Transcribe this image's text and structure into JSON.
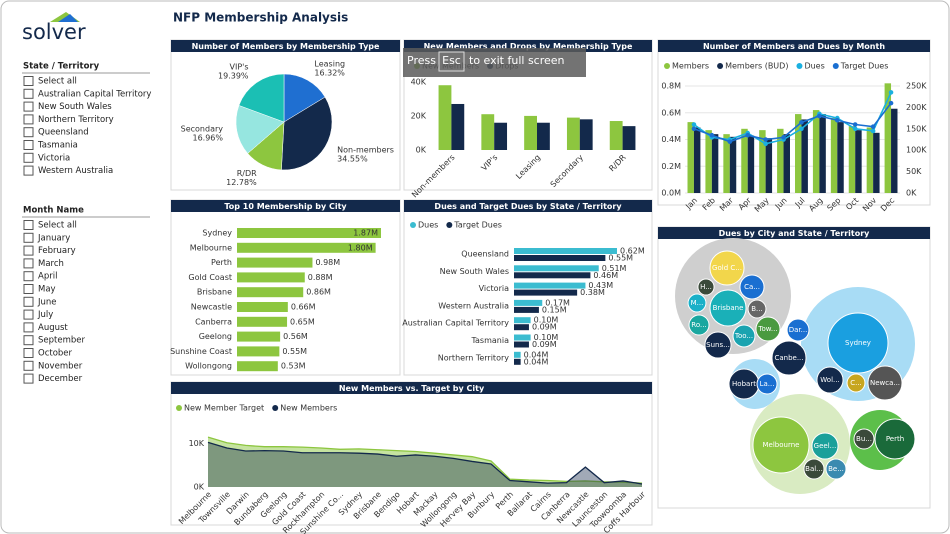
{
  "header": {
    "title": "NFP Membership Analysis",
    "logo": "solver"
  },
  "overlay": {
    "press": "Press",
    "key": "Esc",
    "rest": "to exit full screen"
  },
  "filters": [
    {
      "title": "State / Territory",
      "items": [
        "Select all",
        "Australian Capital Territory",
        "New South Wales",
        "Northern Territory",
        "Queensland",
        "Tasmania",
        "Victoria",
        "Western Australia"
      ]
    },
    {
      "title": "Month Name",
      "items": [
        "Select all",
        "January",
        "February",
        "March",
        "April",
        "May",
        "June",
        "July",
        "August",
        "September",
        "October",
        "November",
        "December"
      ]
    }
  ],
  "chart_data": [
    {
      "type": "pie",
      "title": "Number of Members by Membership Type",
      "categories": [
        "Leasing",
        "Non-members",
        "R/DR",
        "Secondary",
        "VIP's"
      ],
      "values": [
        16.32,
        34.55,
        12.78,
        16.96,
        19.39
      ],
      "value_labels": [
        "16.32%",
        "34.55%",
        "12.78%",
        "16.96%",
        "19.39%"
      ],
      "colors": [
        "#1f6fd1",
        "#13294b",
        "#8dc63f",
        "#96e6e0",
        "#1bbfb4"
      ]
    },
    {
      "type": "bar",
      "title": "New Members and Drops by Membership Type",
      "categories": [
        "Non-members",
        "VIP's",
        "Leasing",
        "Secondary",
        "R/DR"
      ],
      "series": [
        {
          "name": "New Members",
          "color": "#8dc63f",
          "values": [
            38,
            21,
            20,
            19,
            17
          ]
        },
        {
          "name": "Drops",
          "color": "#13294b",
          "values": [
            27,
            16,
            16,
            18,
            14
          ]
        }
      ],
      "ylim": [
        0,
        44
      ],
      "yticks": [
        {
          "value": 0,
          "label": "0K"
        },
        {
          "value": 20,
          "label": "20K"
        },
        {
          "value": 40,
          "label": "40K"
        }
      ]
    },
    {
      "type": "combo",
      "title": "Number of Members and Dues by Month",
      "categories": [
        "Jan",
        "Feb",
        "Mar",
        "Apr",
        "May",
        "Jun",
        "Jul",
        "Aug",
        "Sep",
        "Oct",
        "Nov",
        "Dec"
      ],
      "series": [
        {
          "name": "Members",
          "color": "#8dc63f",
          "values": [
            0.53,
            0.47,
            0.44,
            0.48,
            0.47,
            0.48,
            0.59,
            0.62,
            0.56,
            0.5,
            0.49,
            0.82
          ]
        },
        {
          "name": "Members (BUD)",
          "color": "#13294b",
          "values": [
            0.49,
            0.44,
            0.42,
            0.43,
            0.41,
            0.44,
            0.55,
            0.59,
            0.53,
            0.47,
            0.45,
            0.63
          ]
        },
        {
          "name": "Dues",
          "color": "#1ab0e0",
          "axis": "y2",
          "values": [
            160,
            130,
            125,
            140,
            115,
            125,
            150,
            185,
            175,
            150,
            145,
            235
          ]
        },
        {
          "name": "Target Dues",
          "color": "#1a6fd1",
          "axis": "y2",
          "values": [
            150,
            135,
            120,
            135,
            125,
            130,
            165,
            180,
            170,
            160,
            155,
            210
          ]
        }
      ],
      "ylim": [
        0,
        0.8
      ],
      "yticks": [
        {
          "value": 0,
          "label": "0.0M"
        },
        {
          "value": 0.2,
          "label": "0.2M"
        },
        {
          "value": 0.4,
          "label": "0.4M"
        },
        {
          "value": 0.6,
          "label": "0.6M"
        },
        {
          "value": 0.8,
          "label": "0.8M"
        }
      ],
      "y2lim": [
        0,
        250
      ],
      "y2ticks": [
        {
          "value": 0,
          "label": "0K"
        },
        {
          "value": 50,
          "label": "50K"
        },
        {
          "value": 100,
          "label": "100K"
        },
        {
          "value": 150,
          "label": "150K"
        },
        {
          "value": 200,
          "label": "200K"
        },
        {
          "value": 250,
          "label": "250K"
        }
      ],
      "grid": true
    },
    {
      "type": "hbar",
      "title": "Top 10 Membership by City",
      "categories": [
        "Sydney",
        "Melbourne",
        "Perth",
        "Gold Coast",
        "Brisbane",
        "Newcastle",
        "Canberra",
        "Geelong",
        "Sunshine Coast",
        "Wollongong"
      ],
      "values": [
        1.87,
        1.8,
        0.98,
        0.88,
        0.86,
        0.66,
        0.65,
        0.56,
        0.55,
        0.53
      ],
      "value_labels": [
        "1.87M",
        "1.80M",
        "0.98M",
        "0.88M",
        "0.86M",
        "0.66M",
        "0.65M",
        "0.56M",
        "0.55M",
        "0.53M"
      ],
      "color": "#8dc63f"
    },
    {
      "type": "hbar",
      "title": "Dues and Target Dues by State / Territory",
      "categories": [
        "Queensland",
        "New South Wales",
        "Victoria",
        "Western Australia",
        "Australian Capital Territory",
        "Tasmania",
        "Northern Territory"
      ],
      "series": [
        {
          "name": "Dues",
          "color": "#3bbcd0",
          "values": [
            0.62,
            0.51,
            0.43,
            0.17,
            0.1,
            0.1,
            0.04
          ],
          "value_labels": [
            "0.62M",
            "0.51M",
            "0.43M",
            "0.17M",
            "0.10M",
            "0.10M",
            "0.04M"
          ]
        },
        {
          "name": "Target Dues",
          "color": "#13294b",
          "values": [
            0.55,
            0.46,
            0.38,
            0.15,
            0.09,
            0.09,
            0.04
          ],
          "value_labels": [
            "0.55M",
            "0.46M",
            "0.38M",
            "0.15M",
            "0.09M",
            "0.09M",
            "0.04M"
          ]
        }
      ]
    },
    {
      "type": "area",
      "title": "New Members vs. Target by City",
      "categories": [
        "Melbourne",
        "Townsville",
        "Darwin",
        "Bundaberg",
        "Geelong",
        "Gold Coast",
        "Rockhampton",
        "Sunshine Co...",
        "Sydney",
        "Brisbane",
        "Bendigo",
        "Hobart",
        "Mackay",
        "Wollongong",
        "Hervey Bay",
        "Bunbury",
        "Perth",
        "Ballarat",
        "Cairns",
        "Canberra",
        "Newcastle",
        "Launceston",
        "Toowoomba",
        "Coffs Harbour"
      ],
      "series": [
        {
          "name": "New Member Target",
          "color": "#8dc63f",
          "values": [
            11.5,
            10.2,
            9.6,
            9.3,
            9.3,
            9.2,
            9.0,
            8.7,
            8.8,
            8.6,
            8.4,
            8.2,
            7.8,
            7.4,
            7.0,
            6.0,
            1.8,
            1.6,
            1.5,
            1.3,
            1.4,
            1.2,
            1.1,
            0.9
          ]
        },
        {
          "name": "New Members",
          "color": "#13294b",
          "values": [
            10.3,
            9.0,
            8.3,
            8.4,
            8.3,
            7.9,
            7.9,
            7.9,
            7.8,
            7.6,
            7.1,
            7.4,
            7.1,
            6.6,
            5.9,
            5.3,
            1.5,
            1.2,
            0.9,
            1.0,
            4.6,
            1.0,
            1.4,
            0.7
          ]
        }
      ],
      "ylim": [
        0,
        12
      ],
      "yticks": [
        {
          "value": 0,
          "label": "0K"
        },
        {
          "value": 10,
          "label": "10K"
        }
      ]
    },
    {
      "type": "pack",
      "title": "Dues by City and State / Territory",
      "bubbles": [
        {
          "label": "Gold C...",
          "value": 58,
          "color": "#f2d64b"
        },
        {
          "label": "Ca...",
          "value": 29,
          "color": "#1a6fd1"
        },
        {
          "label": "H...",
          "value": 13,
          "color": "#3a4a3a"
        },
        {
          "label": "M...",
          "value": 16,
          "color": "#1ab0c8"
        },
        {
          "label": "Brisbane",
          "value": 65,
          "color": "#1ab0b8"
        },
        {
          "label": "B...",
          "value": 16,
          "color": "#666666"
        },
        {
          "label": "Ro...",
          "value": 20,
          "color": "#1aa7a0"
        },
        {
          "label": "Tow...",
          "value": 29,
          "color": "#4a9a40"
        },
        {
          "label": "Too...",
          "value": 24,
          "color": "#1aa3b0"
        },
        {
          "label": "Suns...",
          "value": 34,
          "color": "#13294b"
        },
        {
          "label": "Dar...",
          "value": 24,
          "color": "#1a6fd1"
        },
        {
          "label": "Canbe...",
          "value": 58,
          "color": "#13294b"
        },
        {
          "label": "Sydney",
          "value": 180,
          "color": "#1a9fe0"
        },
        {
          "label": "Wol...",
          "value": 34,
          "color": "#13294b"
        },
        {
          "label": "C...",
          "value": 16,
          "color": "#c7a620"
        },
        {
          "label": "Newca...",
          "value": 58,
          "color": "#555555"
        },
        {
          "label": "Hobart",
          "value": 45,
          "color": "#13294b"
        },
        {
          "label": "La...",
          "value": 20,
          "color": "#1a6fd1"
        },
        {
          "label": "Melbourne",
          "value": 157,
          "color": "#8dc63f"
        },
        {
          "label": "Geel...",
          "value": 34,
          "color": "#1aa09a"
        },
        {
          "label": "Bal...",
          "value": 20,
          "color": "#3a4a3a"
        },
        {
          "label": "Be...",
          "value": 20,
          "color": "#3a8ab0"
        },
        {
          "label": "Bu...",
          "value": 20,
          "color": "#3a4a3a"
        },
        {
          "label": "Perth",
          "value": 80,
          "color": "#1a6a3a"
        }
      ]
    }
  ]
}
